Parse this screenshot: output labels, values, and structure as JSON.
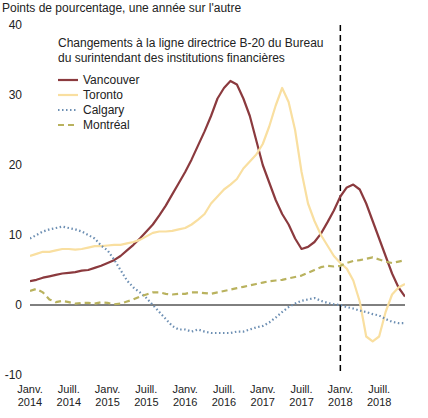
{
  "chart_data": {
    "type": "line",
    "y_label": "Points de pourcentage, une année sur l'autre",
    "annotations": [
      {
        "text": "Changements à la ligne directrice B-20 du Bureau\ndu surintendant des institutions financières",
        "x": "Janv. 2018",
        "line_style": "dashed"
      }
    ],
    "categories": [
      "Janv. 2014",
      null,
      null,
      null,
      null,
      null,
      "Juill. 2014",
      null,
      null,
      null,
      null,
      null,
      "Janv. 2015",
      null,
      null,
      null,
      null,
      null,
      "Juill. 2015",
      null,
      null,
      null,
      null,
      null,
      "Janv. 2016",
      null,
      null,
      null,
      null,
      null,
      "Juill. 2016",
      null,
      null,
      null,
      null,
      null,
      "Janv. 2017",
      null,
      null,
      null,
      null,
      null,
      "Juill. 2017",
      null,
      null,
      null,
      null,
      null,
      "Janv. 2018",
      null,
      null,
      null,
      null,
      null,
      "Juill. 2018",
      null,
      null,
      null,
      null
    ],
    "series": [
      {
        "name": "Vancouver",
        "color": "#8b3a3e",
        "line_style": "solid",
        "values": [
          3.4,
          3.6,
          3.9,
          4.1,
          4.3,
          4.5,
          4.6,
          4.7,
          4.9,
          5.0,
          5.3,
          5.6,
          6.0,
          6.4,
          7.0,
          7.8,
          8.6,
          9.5,
          10.5,
          11.5,
          12.8,
          14.2,
          15.8,
          17.4,
          19.0,
          20.8,
          22.8,
          24.8,
          27.0,
          29.5,
          31.0,
          32.0,
          31.5,
          29.5,
          27.0,
          23.5,
          20.0,
          17.5,
          15.0,
          13.0,
          11.5,
          9.5,
          8.0,
          8.3,
          9.0,
          10.2,
          11.8,
          13.5,
          15.5,
          16.8,
          17.2,
          16.5,
          14.5,
          12.0,
          9.5,
          7.0,
          4.5,
          2.5,
          1.2
        ]
      },
      {
        "name": "Toronto",
        "color": "#f9dfa0",
        "line_style": "solid",
        "values": [
          7.0,
          7.3,
          7.6,
          7.6,
          7.8,
          8.0,
          8.0,
          7.9,
          8.0,
          8.2,
          8.4,
          8.4,
          8.5,
          8.6,
          8.6,
          8.8,
          9.0,
          9.3,
          9.8,
          10.3,
          10.5,
          10.5,
          10.6,
          10.8,
          11.0,
          11.5,
          12.2,
          13.0,
          14.5,
          15.5,
          16.5,
          17.2,
          18.0,
          19.5,
          20.5,
          21.5,
          23.0,
          25.5,
          28.5,
          31.0,
          29.0,
          25.0,
          19.0,
          14.5,
          12.0,
          10.0,
          8.5,
          7.0,
          6.0,
          5.2,
          3.5,
          0.5,
          -4.5,
          -5.2,
          -4.5,
          -1.0,
          1.5,
          2.5,
          3.0
        ]
      },
      {
        "name": "Calgary",
        "color": "#6d8fb3",
        "line_style": "dotted",
        "values": [
          9.5,
          10.0,
          10.5,
          10.8,
          11.0,
          11.2,
          11.0,
          10.8,
          10.5,
          10.0,
          9.5,
          8.5,
          7.8,
          6.5,
          5.0,
          3.5,
          2.5,
          1.8,
          1.0,
          0.0,
          -1.0,
          -2.0,
          -3.0,
          -3.5,
          -3.5,
          -3.8,
          -3.5,
          -3.8,
          -4.0,
          -4.0,
          -4.0,
          -4.0,
          -3.8,
          -3.8,
          -3.5,
          -3.2,
          -3.0,
          -2.5,
          -1.8,
          -1.0,
          -0.3,
          0.2,
          0.6,
          0.8,
          1.0,
          0.6,
          0.3,
          0.1,
          0.0,
          -0.3,
          -0.5,
          -0.8,
          -1.0,
          -1.3,
          -1.5,
          -2.0,
          -2.4,
          -2.6,
          -2.6
        ]
      },
      {
        "name": "Montréal",
        "color": "#b9b25e",
        "line_style": "dashed",
        "values": [
          2.0,
          2.3,
          1.8,
          0.8,
          0.4,
          0.6,
          0.4,
          0.2,
          0.3,
          0.3,
          0.2,
          0.4,
          0.3,
          0.1,
          0.2,
          0.5,
          0.8,
          1.2,
          1.5,
          1.8,
          1.8,
          1.6,
          1.5,
          1.6,
          1.6,
          1.8,
          1.8,
          1.7,
          1.6,
          1.8,
          2.0,
          2.2,
          2.4,
          2.6,
          2.8,
          3.0,
          3.2,
          3.4,
          3.5,
          3.6,
          3.8,
          4.0,
          4.2,
          4.6,
          5.0,
          5.4,
          5.6,
          5.5,
          5.6,
          6.0,
          6.3,
          6.4,
          6.6,
          6.8,
          6.5,
          6.2,
          6.0,
          6.2,
          6.4
        ]
      }
    ],
    "ylim": [
      -10,
      40
    ],
    "yticks": [
      -10,
      0,
      10,
      20,
      30,
      40
    ],
    "grid": false,
    "legend": "upper left"
  }
}
